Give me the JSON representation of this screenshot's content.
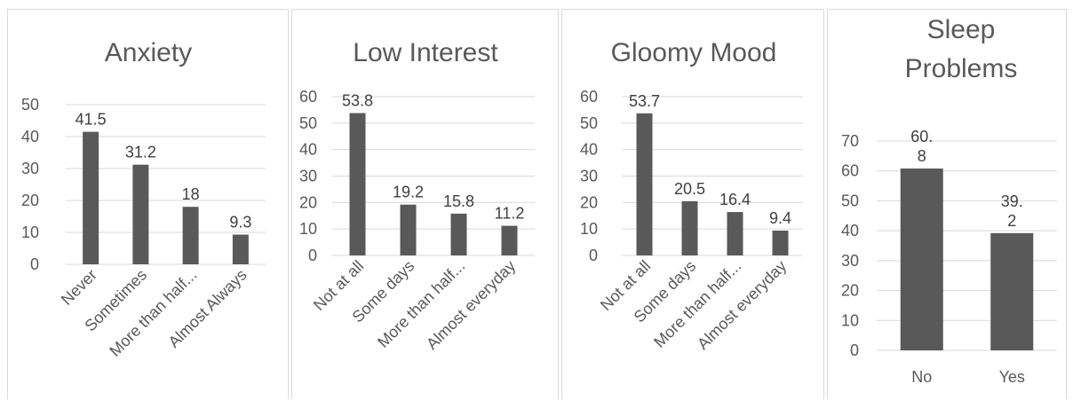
{
  "chart_data": [
    {
      "type": "bar",
      "title": "Anxiety",
      "categories": [
        "Never",
        "Sometimes",
        "More than half...",
        "Almost Always"
      ],
      "values": [
        41.5,
        31.2,
        18,
        9.3
      ],
      "value_labels": [
        "41.5",
        "31.2",
        "18",
        "9.3"
      ],
      "yticks": [
        "0",
        "10",
        "20",
        "30",
        "40",
        "50"
      ],
      "ylim": [
        0,
        50
      ],
      "grid": true,
      "bar_color": "#595959"
    },
    {
      "type": "bar",
      "title": "Low Interest",
      "categories": [
        "Not at all",
        "Some days",
        "More than half...",
        "Almost everyday"
      ],
      "values": [
        53.8,
        19.2,
        15.8,
        11.2
      ],
      "value_labels": [
        "53.8",
        "19.2",
        "15.8",
        "11.2"
      ],
      "yticks": [
        "0",
        "10",
        "20",
        "30",
        "40",
        "50",
        "60"
      ],
      "ylim": [
        0,
        60
      ],
      "grid": true,
      "bar_color": "#595959"
    },
    {
      "type": "bar",
      "title": "Gloomy Mood",
      "categories": [
        "Not at all",
        "Some days",
        "More than half...",
        "Almost everyday"
      ],
      "values": [
        53.7,
        20.5,
        16.4,
        9.4
      ],
      "value_labels": [
        "53.7",
        "20.5",
        "16.4",
        "9.4"
      ],
      "yticks": [
        "0",
        "10",
        "20",
        "30",
        "40",
        "50",
        "60"
      ],
      "ylim": [
        0,
        60
      ],
      "grid": true,
      "bar_color": "#595959"
    },
    {
      "type": "bar",
      "title_lines": [
        "Sleep",
        "Problems"
      ],
      "categories": [
        "No",
        "Yes"
      ],
      "values": [
        60.8,
        39.2
      ],
      "value_label_lines": [
        [
          "60.",
          "8"
        ],
        [
          "39.",
          "2"
        ]
      ],
      "yticks": [
        "0",
        "10",
        "20",
        "30",
        "40",
        "50",
        "60",
        "70"
      ],
      "ylim": [
        0,
        70
      ],
      "grid": true,
      "bar_color": "#595959"
    }
  ]
}
